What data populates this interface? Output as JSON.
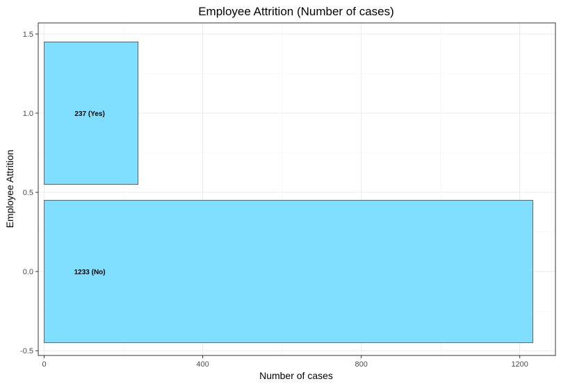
{
  "chart_data": {
    "type": "bar",
    "orientation": "horizontal",
    "title": "Employee Attrition (Number of cases)",
    "xlabel": "Number of cases",
    "ylabel": "Employee Attrition",
    "xlim": [
      -15,
      1290
    ],
    "ylim": [
      -0.53,
      1.57
    ],
    "x_ticks": [
      0,
      400,
      800,
      1200
    ],
    "x_tick_labels": [
      "0",
      "400",
      "800",
      "1200"
    ],
    "y_ticks": [
      -0.5,
      0.0,
      0.5,
      1.0,
      1.5
    ],
    "y_tick_labels": [
      "-0.5",
      "0.0",
      "0.5",
      "1.0",
      "1.5"
    ],
    "bar_width": 0.9,
    "bars": [
      {
        "y": 0,
        "value": 1233,
        "label": "1233 (No)"
      },
      {
        "y": 1,
        "value": 237,
        "label": "237 (Yes)"
      }
    ],
    "label_x": 115,
    "bar_color": "#80dfff",
    "bar_edge_color": "#333333",
    "grid": true,
    "legend": "none"
  }
}
